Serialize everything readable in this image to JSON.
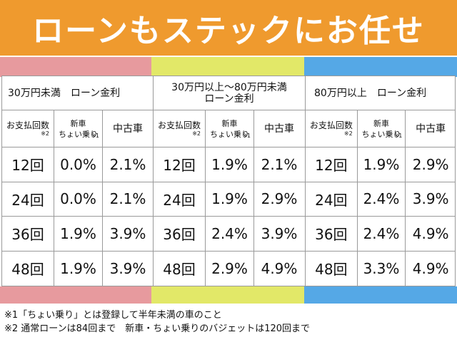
{
  "banner": {
    "title": "ローンもステックにお任せ"
  },
  "colors": {
    "banner": "#ef9a2e",
    "group1": "#e79a9e",
    "group2": "#e2e868",
    "group3": "#55a8e6"
  },
  "groups": [
    {
      "header": "30万円未満　ローン金利",
      "sub": {
        "count": "お支払回数",
        "count_note": "※2",
        "new": "新車\nちょい乗り",
        "new_note": "※1",
        "used": "中古車"
      },
      "rows": [
        [
          "12回",
          "0.0%",
          "2.1%"
        ],
        [
          "24回",
          "0.0%",
          "2.1%"
        ],
        [
          "36回",
          "1.9%",
          "3.9%"
        ],
        [
          "48回",
          "1.9%",
          "3.9%"
        ]
      ]
    },
    {
      "header": "30万円以上～80万円未満\nローン金利",
      "sub": {
        "count": "お支払回数",
        "count_note": "※2",
        "new": "新車\nちょい乗り",
        "new_note": "※1",
        "used": "中古車"
      },
      "rows": [
        [
          "12回",
          "1.9%",
          "2.1%"
        ],
        [
          "24回",
          "1.9%",
          "2.9%"
        ],
        [
          "36回",
          "2.4%",
          "3.9%"
        ],
        [
          "48回",
          "2.9%",
          "4.9%"
        ]
      ]
    },
    {
      "header": "80万円以上　ローン金利",
      "sub": {
        "count": "お支払回数",
        "count_note": "※2",
        "new": "新車\nちょい乗り",
        "new_note": "※1",
        "used": "中古車"
      },
      "rows": [
        [
          "12回",
          "1.9%",
          "2.9%"
        ],
        [
          "24回",
          "2.4%",
          "3.9%"
        ],
        [
          "36回",
          "2.4%",
          "4.9%"
        ],
        [
          "48回",
          "3.3%",
          "4.9%"
        ]
      ]
    }
  ],
  "notes": [
    "※1「ちょい乗り」とは登録して半年未満の車のこと",
    "※2 通常ローンは84回まで　新車・ちょい乗りのバジェットは120回まで"
  ]
}
